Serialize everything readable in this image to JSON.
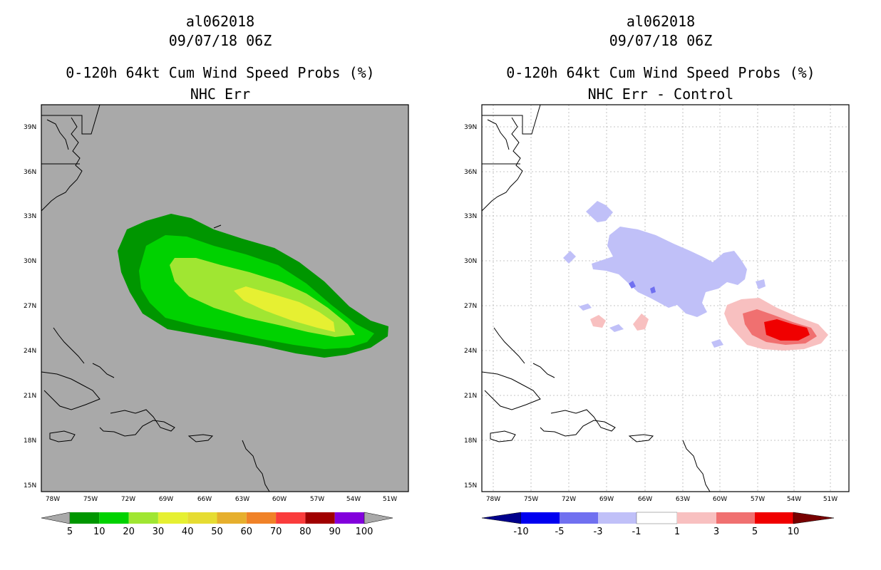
{
  "left_panel": {
    "storm_id": "al062018",
    "datetime": "09/07/18 06Z",
    "product": "0-120h 64kt Cum Wind Speed Probs (%)",
    "subtitle": "NHC Err",
    "lat_labels": [
      "39N",
      "36N",
      "33N",
      "30N",
      "27N",
      "24N",
      "21N",
      "18N",
      "15N"
    ],
    "lon_labels": [
      "78W",
      "75W",
      "72W",
      "69W",
      "66W",
      "63W",
      "60W",
      "57W",
      "54W",
      "51W"
    ],
    "colorbar": {
      "labels": [
        "5",
        "10",
        "20",
        "30",
        "40",
        "50",
        "60",
        "70",
        "80",
        "90",
        "100"
      ],
      "colors": [
        "#009600",
        "#00d200",
        "#a0e632",
        "#e6f032",
        "#e6dc32",
        "#e6af2d",
        "#f08228",
        "#fa3c3c",
        "#a00000",
        "#8200dc"
      ],
      "under_color": "#a9a9a9",
      "over_color": "#a9a9a9"
    }
  },
  "right_panel": {
    "storm_id": "al062018",
    "datetime": "09/07/18 06Z",
    "product": "0-120h 64kt Cum Wind Speed Probs (%)",
    "subtitle": "NHC Err - Control",
    "lat_labels": [
      "39N",
      "36N",
      "33N",
      "30N",
      "27N",
      "24N",
      "21N",
      "18N",
      "15N"
    ],
    "lon_labels": [
      "78W",
      "75W",
      "72W",
      "69W",
      "66W",
      "63W",
      "60W",
      "57W",
      "54W",
      "51W"
    ],
    "colorbar": {
      "labels": [
        "-10",
        "-5",
        "-3",
        "-1",
        "1",
        "3",
        "5",
        "10"
      ],
      "colors": [
        "#0000f0",
        "#7070f0",
        "#c0c0f8",
        "#ffffff",
        "#f8c0c0",
        "#f07070",
        "#f00000"
      ],
      "under_color": "#00008c",
      "over_color": "#780000"
    }
  }
}
